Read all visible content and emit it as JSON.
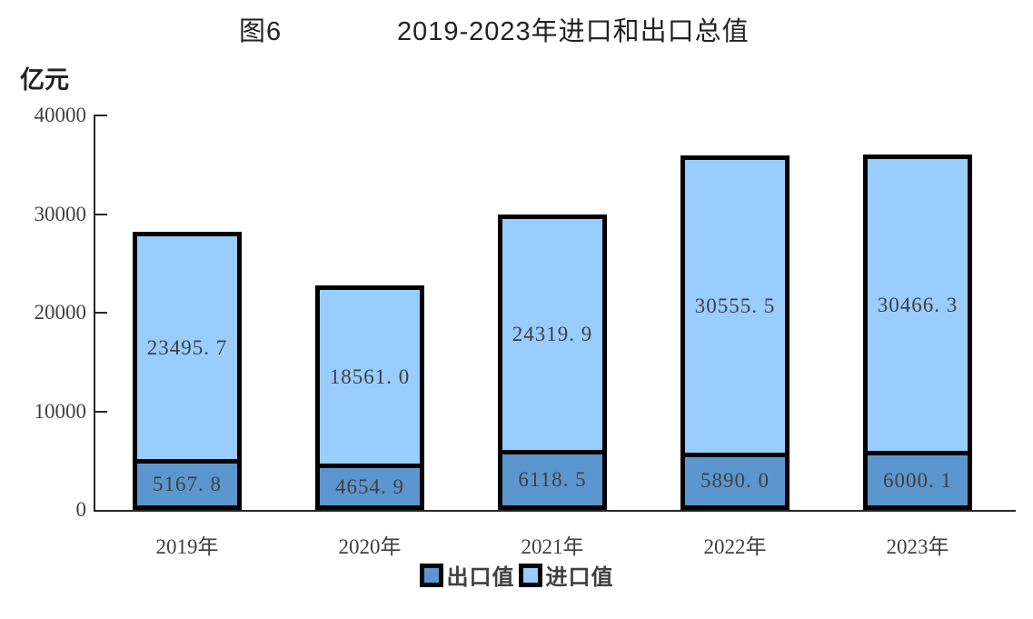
{
  "title": {
    "figure_label": "图6",
    "text": "2019-2023年进口和出口总值"
  },
  "chart_data": {
    "type": "bar",
    "stacked": true,
    "title": "2019-2023年进口和出口总值",
    "unit_label": "亿元",
    "categories": [
      "2019年",
      "2020年",
      "2021年",
      "2022年",
      "2023年"
    ],
    "series": [
      {
        "name": "出口值",
        "color": "#5C96CE",
        "values": [
          5167.8,
          4654.9,
          6118.5,
          5890.0,
          6000.1
        ],
        "labels": [
          "5167. 8",
          "4654. 9",
          "6118. 5",
          "5890. 0",
          "6000. 1"
        ]
      },
      {
        "name": "进口值",
        "color": "#99CCFF",
        "values": [
          23495.7,
          18561.0,
          24319.9,
          30555.5,
          30466.3
        ],
        "labels": [
          "23495. 7",
          "18561. 0",
          "24319. 9",
          "30555. 5",
          "30466. 3"
        ]
      }
    ],
    "ylim": [
      0,
      40000
    ],
    "yticks": [
      0,
      10000,
      20000,
      30000,
      40000
    ],
    "grid": false,
    "legend_position": "bottom",
    "bar_border_color": "#000000",
    "value_label_color": "#3f3f3f"
  }
}
